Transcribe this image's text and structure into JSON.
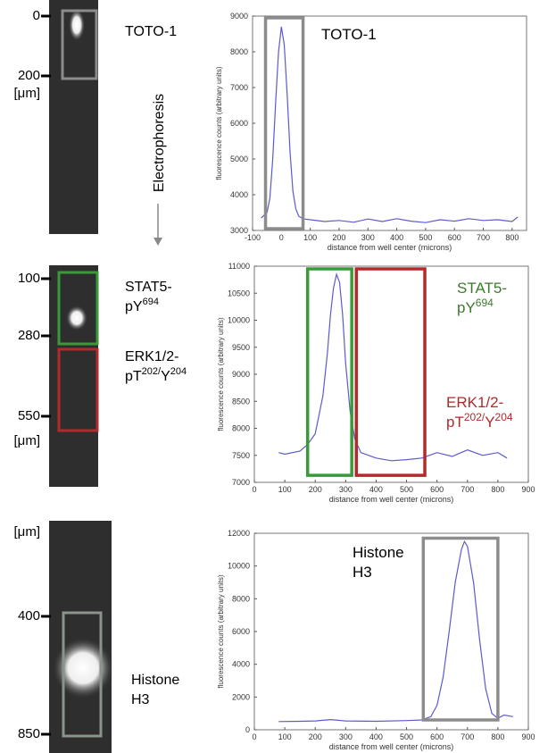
{
  "panels": [
    {
      "gel_ticks": [
        "0",
        "200"
      ],
      "gel_unit": "[μm]",
      "label": [
        [
          {
            "text": "TOTO-1"
          }
        ]
      ],
      "direction": "Electrophoresis"
    },
    {
      "gel_ticks": [
        "100",
        "280",
        "550"
      ],
      "gel_unit": "[μm]",
      "label": [
        [
          {
            "text": "STAT5-"
          }
        ],
        [
          {
            "text": "pY"
          },
          {
            "text": "694"
          }
        ],
        [
          {
            "text": "ERK1/2-"
          }
        ],
        [
          {
            "text": "pT"
          },
          {
            "text": "202/"
          },
          {
            "text": "Y"
          },
          {
            "text": "204"
          }
        ]
      ]
    },
    {
      "gel_ticks": [
        "400",
        "850"
      ],
      "gel_unit": "[μm]",
      "label": [
        [
          {
            "text": "Histone"
          }
        ],
        [
          {
            "text": "H3"
          }
        ]
      ]
    }
  ],
  "chart_data": [
    {
      "type": "line",
      "xlabel": "distance from well center (microns)",
      "ylabel": "fluorescence counts (arbitrary units)",
      "x": [
        -70,
        -50,
        -40,
        -30,
        -20,
        -10,
        0,
        10,
        20,
        30,
        40,
        50,
        60,
        70,
        80,
        100,
        150,
        200,
        250,
        300,
        350,
        400,
        450,
        500,
        550,
        600,
        650,
        700,
        750,
        800,
        820
      ],
      "series": [
        {
          "color": "#5b5bd0",
          "values": [
            3350,
            3500,
            3900,
            5000,
            6600,
            8000,
            8700,
            8200,
            6800,
            5200,
            4100,
            3600,
            3400,
            3350,
            3320,
            3300,
            3250,
            3280,
            3230,
            3320,
            3250,
            3330,
            3260,
            3220,
            3300,
            3260,
            3330,
            3280,
            3300,
            3250,
            3380
          ]
        }
      ],
      "xlim": [
        -100,
        850
      ],
      "xticks": [
        -100,
        0,
        100,
        200,
        300,
        400,
        500,
        600,
        700,
        800
      ],
      "ylim": [
        3000,
        9000
      ],
      "yticks": [
        3000,
        4000,
        5000,
        6000,
        7000,
        8000,
        9000
      ],
      "regions": [
        {
          "xlim": [
            -55,
            75
          ],
          "ylim": [
            3050,
            8950
          ],
          "color": "#8c8c8c"
        }
      ],
      "annotations": [
        {
          "color": "#000000",
          "lines": [
            [
              {
                "text": "TOTO-1"
              }
            ]
          ]
        }
      ]
    },
    {
      "type": "line",
      "xlabel": "distance from well center (microns)",
      "ylabel": "fluorescence counts (arbitrary units)",
      "x": [
        80,
        100,
        150,
        175,
        200,
        225,
        240,
        250,
        260,
        270,
        280,
        290,
        300,
        315,
        330,
        350,
        400,
        450,
        500,
        550,
        600,
        650,
        700,
        750,
        800,
        830
      ],
      "series": [
        {
          "color": "#5b5bd0",
          "values": [
            7550,
            7520,
            7580,
            7700,
            7900,
            8600,
            9400,
            10100,
            10600,
            10850,
            10700,
            10100,
            9200,
            8300,
            7800,
            7550,
            7450,
            7400,
            7420,
            7450,
            7550,
            7480,
            7600,
            7500,
            7550,
            7450
          ]
        }
      ],
      "xlim": [
        0,
        900
      ],
      "xticks": [
        0,
        100,
        200,
        300,
        400,
        500,
        600,
        700,
        800,
        900
      ],
      "ylim": [
        7000,
        11000
      ],
      "yticks": [
        7000,
        7500,
        8000,
        8500,
        9000,
        9500,
        10000,
        10500,
        11000
      ],
      "regions": [
        {
          "xlim": [
            175,
            320
          ],
          "ylim": [
            7130,
            10950
          ],
          "color": "#3a9a3a"
        },
        {
          "xlim": [
            335,
            560
          ],
          "ylim": [
            7130,
            10950
          ],
          "color": "#b22a2a"
        }
      ],
      "annotations": [
        {
          "color": "#3b7a2e",
          "lines": [
            [
              {
                "text": "STAT5-"
              }
            ],
            [
              {
                "text": "pY"
              },
              {
                "text": "694"
              }
            ]
          ]
        },
        {
          "color": "#b22a2a",
          "lines": [
            [
              {
                "text": "ERK1/2-"
              }
            ],
            [
              {
                "text": "pT"
              },
              {
                "text": "202/"
              },
              {
                "text": "Y"
              },
              {
                "text": "204"
              }
            ]
          ]
        }
      ]
    },
    {
      "type": "line",
      "xlabel": "distance from well center (microns)",
      "ylabel": "fluorescence counts (arbitrary units)",
      "x": [
        80,
        150,
        200,
        250,
        300,
        400,
        500,
        550,
        580,
        600,
        620,
        640,
        660,
        680,
        690,
        700,
        720,
        740,
        760,
        780,
        800,
        820,
        850
      ],
      "series": [
        {
          "color": "#5b5bd0",
          "values": [
            500,
            520,
            540,
            620,
            540,
            520,
            560,
            600,
            800,
            1500,
            3200,
            6000,
            9000,
            11000,
            11500,
            11200,
            9000,
            5500,
            2500,
            1000,
            700,
            900,
            800
          ]
        }
      ],
      "xlim": [
        0,
        900
      ],
      "xticks": [
        0,
        100,
        200,
        300,
        400,
        500,
        600,
        700,
        800,
        900
      ],
      "ylim": [
        0,
        12000
      ],
      "yticks": [
        0,
        2000,
        4000,
        6000,
        8000,
        10000,
        12000
      ],
      "regions": [
        {
          "xlim": [
            555,
            800
          ],
          "ylim": [
            600,
            11700
          ],
          "color": "#8c8c8c"
        }
      ],
      "annotations": [
        {
          "color": "#000000",
          "lines": [
            [
              {
                "text": "Histone"
              }
            ],
            [
              {
                "text": "H3"
              }
            ]
          ]
        }
      ]
    }
  ]
}
